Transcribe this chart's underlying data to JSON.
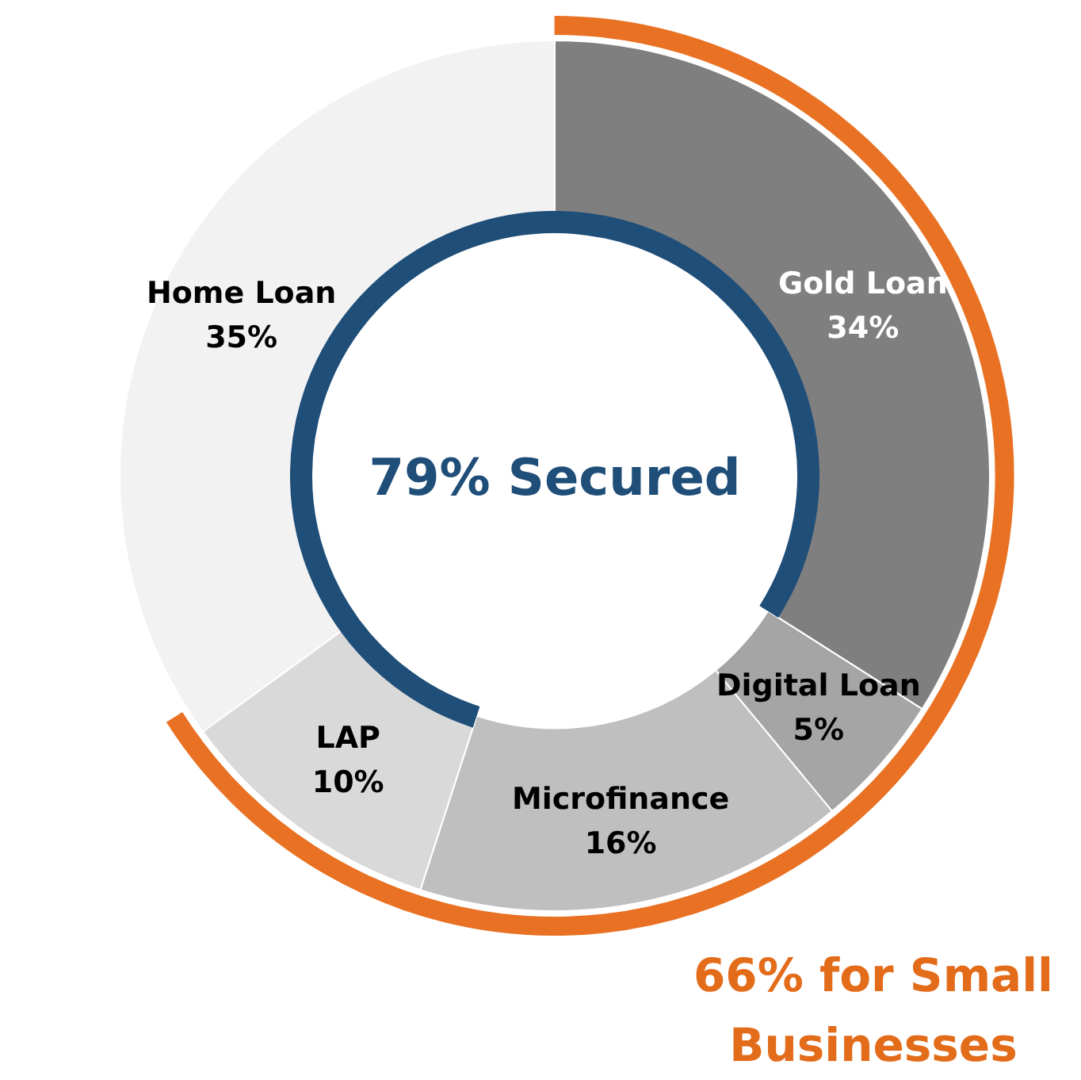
{
  "chart_data": {
    "type": "donut",
    "categories": [
      "Gold Loan",
      "Digital Loan",
      "Microfinance",
      "LAP",
      "Home Loan"
    ],
    "values": [
      34,
      5,
      16,
      10,
      35
    ],
    "value_labels": [
      "34%",
      "5%",
      "16%",
      "10%",
      "35%"
    ],
    "colors": [
      "#7f7f7f",
      "#a5a5a5",
      "#bfbfbf",
      "#d9d9d9",
      "#f2f2f2"
    ],
    "legend": false,
    "annotations": [
      "79% Secured",
      "66% for Small Businesses"
    ]
  }
}
